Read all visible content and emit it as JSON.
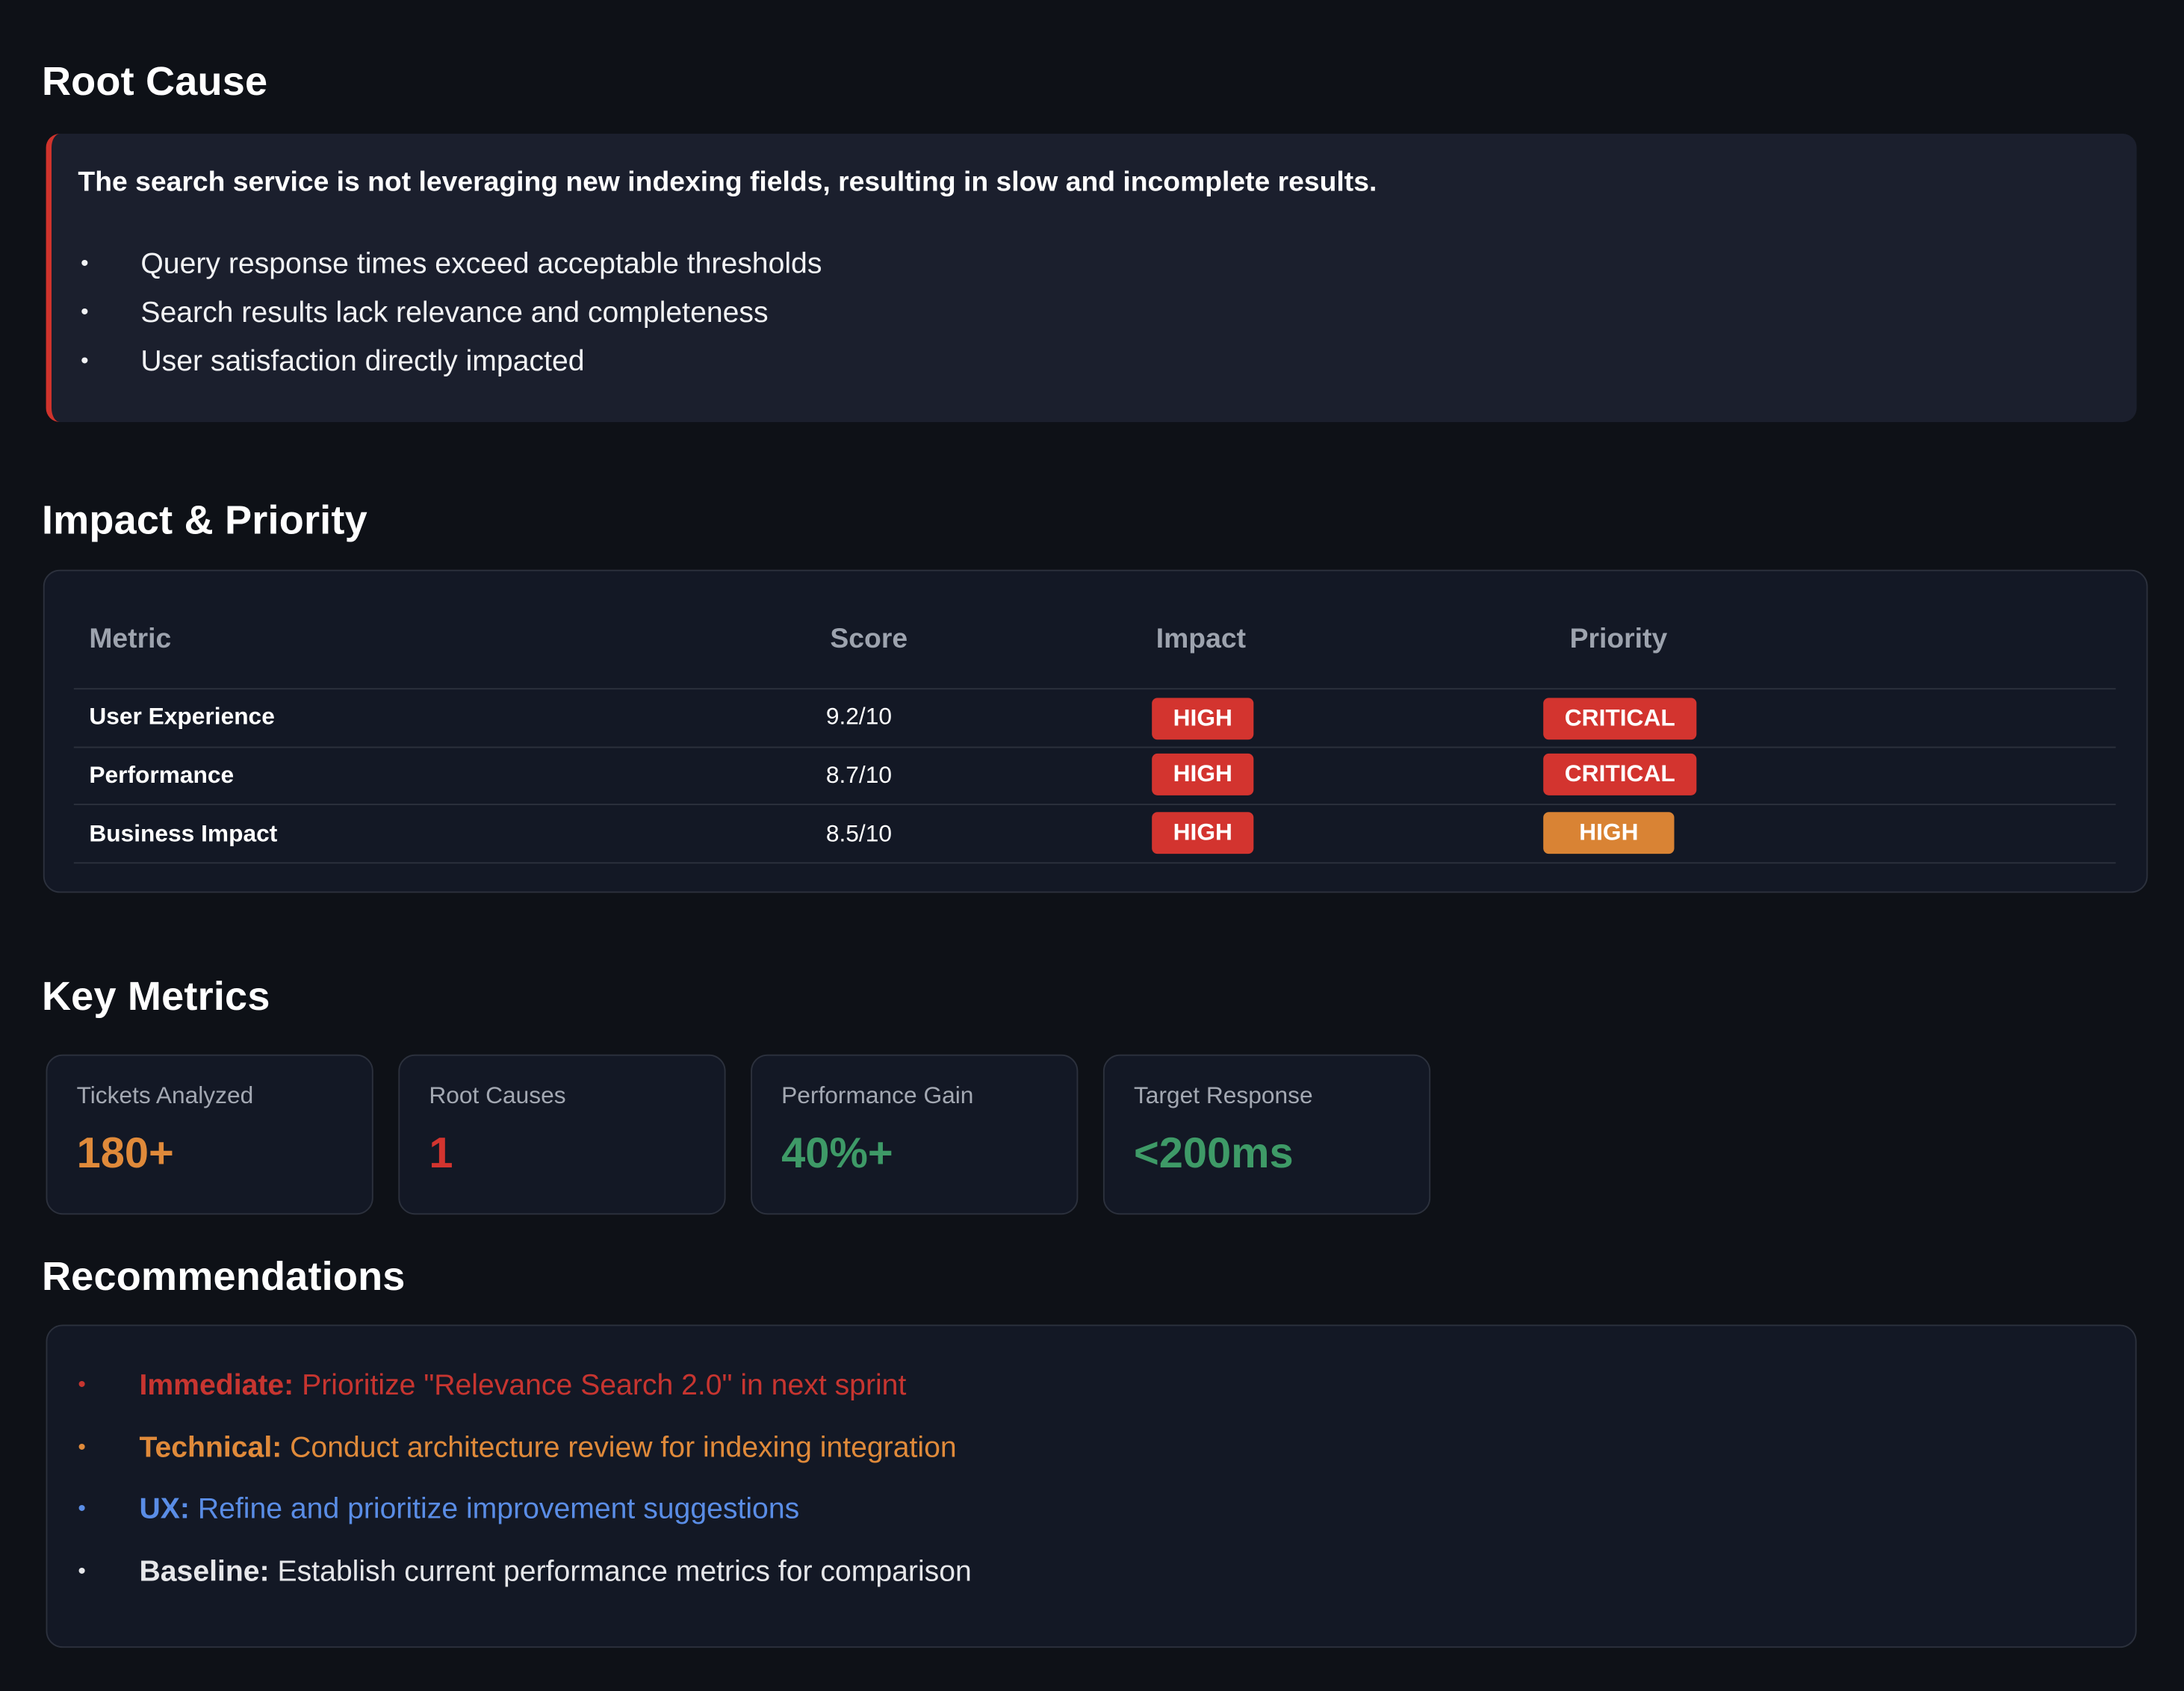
{
  "root_cause": {
    "heading": "Root Cause",
    "lead": "The search service is not leveraging new indexing fields, resulting in slow and incomplete results.",
    "bullets": [
      "Query response times exceed acceptable thresholds",
      "Search results lack relevance and completeness",
      "User satisfaction directly impacted"
    ],
    "accent_color": "#d0332c"
  },
  "impact": {
    "heading": "Impact & Priority",
    "columns": [
      "Metric",
      "Score",
      "Impact",
      "Priority"
    ],
    "rows": [
      {
        "metric": "User Experience",
        "score": "9.2/10",
        "impact": "HIGH",
        "priority": "CRITICAL"
      },
      {
        "metric": "Performance",
        "score": "8.7/10",
        "impact": "HIGH",
        "priority": "CRITICAL"
      },
      {
        "metric": "Business Impact",
        "score": "8.5/10",
        "impact": "HIGH",
        "priority": "HIGH"
      }
    ],
    "badge_colors": {
      "red": "#d3342f",
      "orange": "#d98334"
    }
  },
  "key_metrics": {
    "heading": "Key Metrics",
    "cards": [
      {
        "label": "Tickets Analyzed",
        "value": "180+",
        "color": "#e08a3a"
      },
      {
        "label": "Root Causes",
        "value": "1",
        "color": "#d3342f"
      },
      {
        "label": "Performance Gain",
        "value": "40%+",
        "color": "#3e9a67"
      },
      {
        "label": "Target Response",
        "value": "<200ms",
        "color": "#3e9a67"
      }
    ]
  },
  "recommendations": {
    "heading": "Recommendations",
    "items": [
      {
        "label": "Immediate:",
        "text": " Prioritize \"Relevance Search 2.0\" in next sprint",
        "color": "#c73530"
      },
      {
        "label": "Technical:",
        "text": " Conduct architecture review for indexing integration",
        "color": "#e08a3a"
      },
      {
        "label": "UX:",
        "text": " Refine and prioritize improvement suggestions",
        "color": "#5a8de6"
      },
      {
        "label": "Baseline:",
        "text": " Establish current performance metrics for comparison",
        "color": "#e6e7ea"
      }
    ]
  }
}
